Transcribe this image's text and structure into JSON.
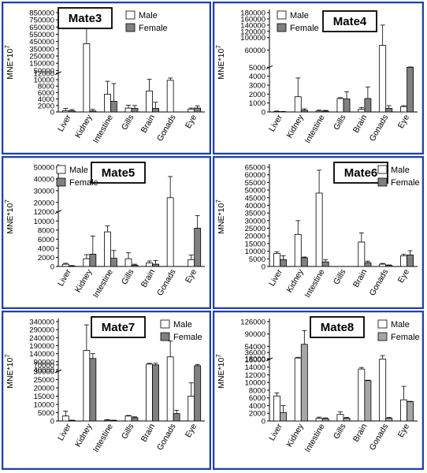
{
  "chart_data": [
    {
      "type": "bar",
      "title": "Mate3",
      "ylabel": "MNE*10",
      "ylabel_exp": "7",
      "categories": [
        "Liver",
        "Kidney",
        "Intestine",
        "Gills",
        "Brain",
        "Gonads",
        "Eye"
      ],
      "series": [
        {
          "name": "Male",
          "color": "#ffffff",
          "values": [
            400,
            420000,
            5500,
            1200,
            6500,
            9800,
            900
          ],
          "errors": [
            700,
            320000,
            4000,
            900,
            3600,
            700,
            300
          ]
        },
        {
          "name": "Female",
          "color": "#808080",
          "values": [
            350,
            300,
            3300,
            1100,
            1100,
            null,
            1200
          ],
          "errors": [
            400,
            500,
            5500,
            900,
            1900,
            null,
            700
          ]
        }
      ],
      "axis": {
        "segments": [
          {
            "from": 0,
            "to": 12000,
            "frac": 0.39
          },
          {
            "from": 12000,
            "to": 850000,
            "frac": 0.61
          }
        ],
        "ticks": [
          0,
          2000,
          4000,
          6000,
          8000,
          10000,
          12000,
          50000,
          150000,
          250000,
          350000,
          450000,
          550000,
          650000,
          750000,
          850000
        ],
        "tick_labels": [
          "0",
          "2000",
          "4000",
          "6000",
          "8000",
          "10000",
          "12000",
          "50000",
          "150000",
          "250000",
          "350000",
          "450000",
          "550000",
          "650000",
          "750000",
          "850000"
        ]
      }
    },
    {
      "type": "bar",
      "title": "Mate4",
      "ylabel": "MNE*10",
      "ylabel_exp": "7",
      "categories": [
        "Liver",
        "Kidney",
        "Intestine",
        "Gills",
        "Brain",
        "Gonads",
        "Eye"
      ],
      "series": [
        {
          "name": "Male",
          "color": "#ffffff",
          "values": [
            40,
            1700,
            100,
            1500,
            300,
            75000,
            600
          ],
          "errors": [
            60,
            2100,
            100,
            100,
            200,
            65000,
            100
          ]
        },
        {
          "name": "Female",
          "color": "#808080",
          "values": [
            20,
            200,
            100,
            1450,
            1500,
            400,
            5000
          ],
          "errors": [
            40,
            150,
            80,
            800,
            1300,
            300,
            900
          ]
        }
      ],
      "axis": {
        "segments": [
          {
            "from": 0,
            "to": 5000,
            "frac": 0.45
          },
          {
            "from": 5000,
            "to": 180000,
            "frac": 0.55
          }
        ],
        "ticks": [
          0,
          1000,
          2000,
          3000,
          4000,
          5000,
          60000,
          100000,
          120000,
          140000,
          160000,
          180000
        ],
        "tick_labels": [
          "0",
          "1000",
          "2000",
          "3000",
          "4000",
          "5000",
          "60000",
          "100000",
          "120000",
          "140000",
          "160000",
          "180000"
        ]
      }
    },
    {
      "type": "bar",
      "title": "Mate5",
      "ylabel": "MNE*10",
      "ylabel_exp": "7",
      "categories": [
        "Liver",
        "Kidney",
        "Intestine",
        "Gills",
        "Brain",
        "Gonads",
        "Eye"
      ],
      "series": [
        {
          "name": "Male",
          "color": "#ffffff",
          "values": [
            500,
            1700,
            7600,
            1700,
            800,
            24000,
            1500
          ],
          "errors": [
            200,
            900,
            1300,
            1300,
            400,
            18000,
            1000
          ]
        },
        {
          "name": "Female",
          "color": "#808080",
          "values": [
            100,
            2700,
            1800,
            300,
            500,
            0,
            8400
          ],
          "errors": [
            100,
            4000,
            1700,
            200,
            800,
            0,
            2800
          ]
        }
      ],
      "axis": {
        "segments": [
          {
            "from": 0,
            "to": 12000,
            "frac": 0.55
          },
          {
            "from": 12000,
            "to": 50000,
            "frac": 0.45
          }
        ],
        "ticks": [
          0,
          2000,
          4000,
          6000,
          8000,
          10000,
          12000,
          20000,
          30000,
          40000,
          50000
        ],
        "tick_labels": [
          "0",
          "2000",
          "4000",
          "6000",
          "8000",
          "10000",
          "12000",
          "20000",
          "30000",
          "40000",
          "50000"
        ]
      }
    },
    {
      "type": "bar",
      "title": "Mate6",
      "ylabel": "MNE*10",
      "ylabel_exp": "7",
      "categories": [
        "Liver",
        "Kidney",
        "Intestine",
        "Gills",
        "Brain",
        "Gonads",
        "Eye"
      ],
      "series": [
        {
          "name": "Male",
          "color": "#ffffff",
          "values": [
            8500,
            21000,
            48000,
            0,
            16000,
            1500,
            7000
          ],
          "errors": [
            1000,
            9000,
            15000,
            0,
            6000,
            500,
            1000
          ]
        },
        {
          "name": "Female",
          "color": "#808080",
          "values": [
            4500,
            5700,
            3000,
            0,
            2500,
            700,
            7500
          ],
          "errors": [
            2500,
            500,
            1500,
            0,
            1000,
            300,
            2800
          ]
        }
      ],
      "axis": {
        "segments": [
          {
            "from": 0,
            "to": 65000,
            "frac": 1.0
          }
        ],
        "ticks": [
          0,
          5000,
          10000,
          15000,
          20000,
          25000,
          30000,
          35000,
          40000,
          45000,
          50000,
          55000,
          60000,
          65000
        ],
        "tick_labels": [
          "0",
          "5000",
          "10000",
          "15000",
          "20000",
          "25000",
          "30000",
          "35000",
          "40000",
          "45000",
          "50000",
          "55000",
          "60000",
          "65000"
        ]
      }
    },
    {
      "type": "bar",
      "title": "Mate7",
      "ylabel": "MNE*10",
      "ylabel_exp": "7",
      "categories": [
        "Liver",
        "Kidney",
        "Intestine",
        "Gills",
        "Brain",
        "Gonads",
        "Eye"
      ],
      "series": [
        {
          "name": "Male",
          "color": "#ffffff",
          "values": [
            3000,
            160000,
            500,
            3000,
            75000,
            120000,
            15000
          ],
          "errors": [
            3000,
            160000,
            300,
            300,
            5000,
            100000,
            8000
          ]
        },
        {
          "name": "Female",
          "color": "#808080",
          "values": [
            300,
            110000,
            300,
            2000,
            70000,
            4500,
            65000
          ],
          "errors": [
            200,
            30000,
            200,
            500,
            10000,
            2000,
            8000
          ]
        }
      ],
      "axis": {
        "segments": [
          {
            "from": 0,
            "to": 30000,
            "frac": 0.5
          },
          {
            "from": 30000,
            "to": 340000,
            "frac": 0.5
          }
        ],
        "ticks": [
          0,
          5000,
          10000,
          15000,
          20000,
          25000,
          30000,
          40000,
          70000,
          90000,
          140000,
          190000,
          240000,
          290000,
          340000
        ],
        "tick_labels": [
          "0",
          "5000",
          "10000",
          "15000",
          "20000",
          "25000",
          "30000",
          "40000",
          "70000",
          "90000",
          "140000",
          "190000",
          "240000",
          "290000",
          "340000"
        ]
      }
    },
    {
      "type": "bar",
      "title": "Mate8",
      "ylabel": "MNE*10",
      "ylabel_exp": "7",
      "categories": [
        "Liver",
        "Kidney",
        "Intestine",
        "Gills",
        "Brain",
        "Gonads",
        "Eye"
      ],
      "series": [
        {
          "name": "Male",
          "color": "#ffffff",
          "values": [
            6500,
            20000,
            700,
            1700,
            13500,
            17000,
            5500
          ],
          "errors": [
            800,
            2000,
            300,
            700,
            400,
            10000,
            3500
          ]
        },
        {
          "name": "Female",
          "color": "#a6a6a6",
          "values": [
            2200,
            60000,
            600,
            700,
            10500,
            700,
            5000
          ],
          "errors": [
            1800,
            40000,
            200,
            200,
            100,
            200,
            100
          ]
        }
      ],
      "axis": {
        "segments": [
          {
            "from": 0,
            "to": 16000,
            "frac": 0.62
          },
          {
            "from": 16000,
            "to": 126000,
            "frac": 0.38
          }
        ],
        "ticks": [
          0,
          2000,
          4000,
          6000,
          8000,
          10000,
          12000,
          14000,
          16000,
          18000,
          36000,
          54000,
          90000,
          126000
        ],
        "tick_labels": [
          "0",
          "2000",
          "4000",
          "6000",
          "8000",
          "10000",
          "12000",
          "14000",
          "16000",
          "18000",
          "36000",
          "54000",
          "90000",
          "126000"
        ]
      }
    }
  ]
}
